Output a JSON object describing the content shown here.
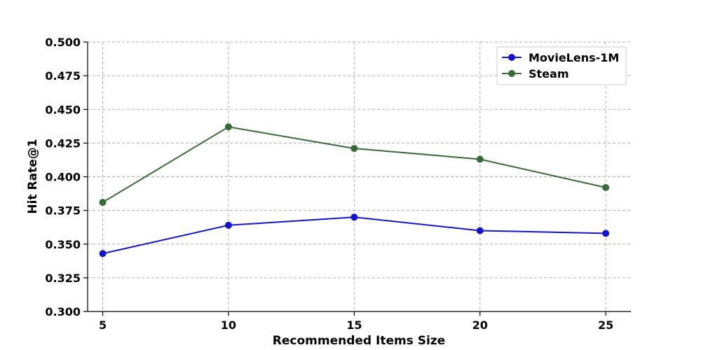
{
  "chart_data": {
    "type": "line",
    "title": "",
    "xlabel": "Recommended Items Size",
    "ylabel": "Hit Rate@1",
    "x": [
      5,
      10,
      15,
      20,
      25
    ],
    "x_ticks": [
      "5",
      "10",
      "15",
      "20",
      "25"
    ],
    "xlim": [
      4.4,
      26
    ],
    "ylim": [
      0.3,
      0.5
    ],
    "y_ticks": [
      "0.300",
      "0.325",
      "0.350",
      "0.375",
      "0.400",
      "0.425",
      "0.450",
      "0.475",
      "0.500"
    ],
    "y_tick_values": [
      0.3,
      0.325,
      0.35,
      0.375,
      0.4,
      0.425,
      0.45,
      0.475,
      0.5
    ],
    "grid": true,
    "legend_position": "top-right",
    "series": [
      {
        "name": "MovieLens-1M",
        "color": "#1414c8",
        "values": [
          0.343,
          0.364,
          0.37,
          0.36,
          0.358
        ]
      },
      {
        "name": "Steam",
        "color": "#356b35",
        "values": [
          0.381,
          0.437,
          0.421,
          0.413,
          0.392
        ]
      }
    ]
  }
}
